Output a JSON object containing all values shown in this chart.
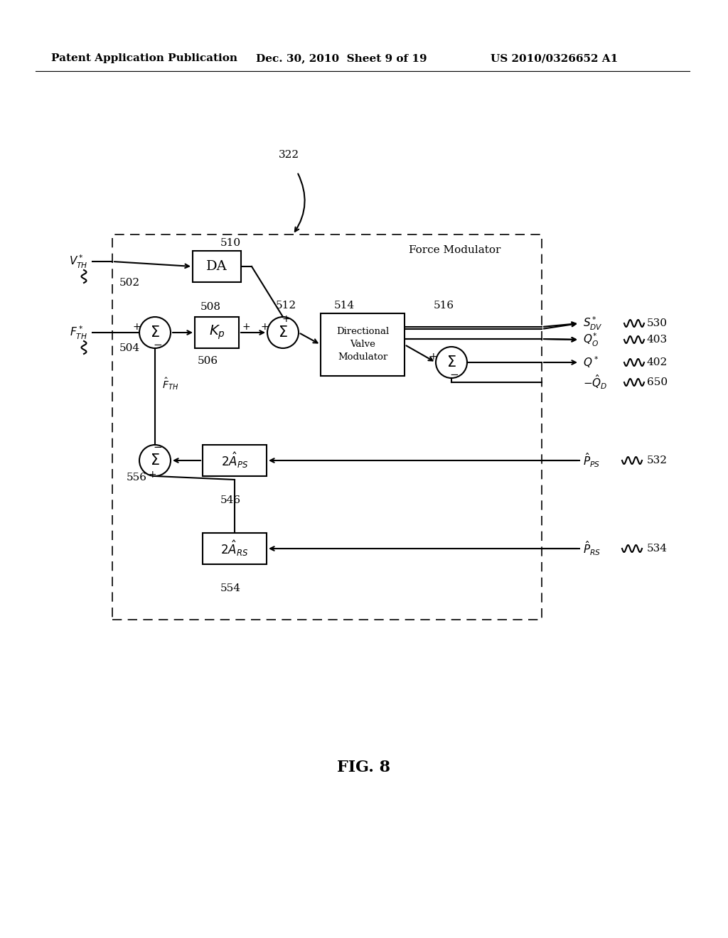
{
  "title_left": "Patent Application Publication",
  "title_mid": "Dec. 30, 2010  Sheet 9 of 19",
  "title_right": "US 2010/0326652 A1",
  "fig_label": "FIG. 8"
}
